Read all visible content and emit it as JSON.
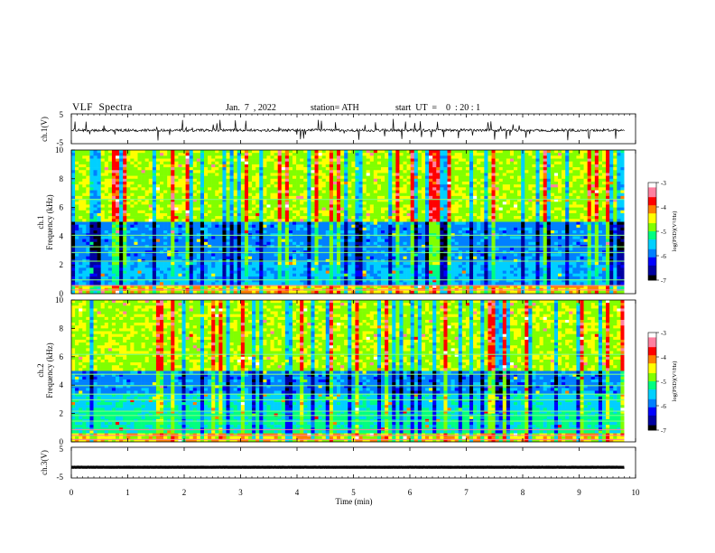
{
  "header": {
    "title": "VLF  Spectra",
    "date": "Jan.  7  , 2022",
    "station": "station= ATH",
    "start": "start  UT  =    0  : 20 : 1"
  },
  "chart_data": [
    {
      "type": "line",
      "panel": "ch1-waveform",
      "ylabel": "ch.1(V)",
      "ylim": [
        -5,
        5
      ],
      "yticks": [
        "5",
        "-5"
      ],
      "xlim": [
        0,
        10
      ],
      "baseline": -0.5,
      "series_color": "#000000"
    },
    {
      "type": "heatmap",
      "panel": "ch1-spectrogram",
      "ylabel": "ch.1\nFrequency  (kHz)",
      "ylim": [
        0,
        10
      ],
      "yticks": [
        "0",
        "2",
        "4",
        "6",
        "8",
        "10"
      ],
      "xlim": [
        0,
        9.8
      ],
      "colorbar": {
        "label": "log(PSD)(V²/Hz)",
        "range": [
          -7,
          -3
        ],
        "ticks": [
          "-3",
          "-4",
          "-5",
          "-6",
          "-7"
        ]
      }
    },
    {
      "type": "heatmap",
      "panel": "ch2-spectrogram",
      "ylabel": "ch.2\nFrequency  (kHz)",
      "ylim": [
        0,
        10
      ],
      "yticks": [
        "0",
        "2",
        "4",
        "6",
        "8",
        "10"
      ],
      "xlim": [
        0,
        9.8
      ],
      "colorbar": {
        "label": "log(PSD)(V²/Hz)",
        "range": [
          -7,
          -3
        ],
        "ticks": [
          "-3",
          "-4",
          "-5",
          "-6",
          "-7"
        ]
      }
    },
    {
      "type": "line",
      "panel": "ch3-waveform",
      "ylabel": "ch.3(V)",
      "ylim": [
        -5,
        5
      ],
      "yticks": [
        "5",
        "-5"
      ],
      "xlim": [
        0,
        10
      ],
      "baseline": -1.5,
      "series_color": "#000000"
    }
  ],
  "xaxis": {
    "label": "Time  (min)",
    "ticks": [
      "0",
      "1",
      "2",
      "3",
      "4",
      "5",
      "6",
      "7",
      "8",
      "9",
      "10"
    ]
  },
  "colormap": [
    "#000000",
    "#0000a0",
    "#0000ff",
    "#0080ff",
    "#00d0ff",
    "#00ff80",
    "#80ff00",
    "#ffff00",
    "#ff8000",
    "#ff0000",
    "#ff80a0",
    "#ffffff"
  ]
}
